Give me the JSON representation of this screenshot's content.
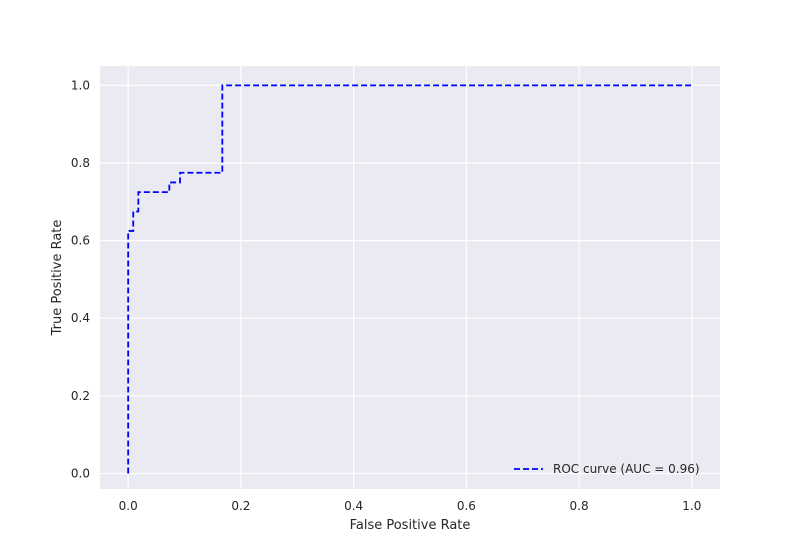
{
  "chart_data": {
    "type": "line",
    "title": "",
    "xlabel": "False Positive Rate",
    "ylabel": "True Positive Rate",
    "xlim": [
      -0.05,
      1.05
    ],
    "ylim": [
      -0.04,
      1.05
    ],
    "xticks": [
      0.0,
      0.2,
      0.4,
      0.6,
      0.8,
      1.0
    ],
    "xtick_labels": [
      "0.0",
      "0.2",
      "0.4",
      "0.6",
      "0.8",
      "1.0"
    ],
    "yticks": [
      0.0,
      0.2,
      0.4,
      0.6,
      0.8,
      1.0
    ],
    "ytick_labels": [
      "0.0",
      "0.2",
      "0.4",
      "0.6",
      "0.8",
      "1.0"
    ],
    "grid": true,
    "legend_position": "bottom-right",
    "series": [
      {
        "name": "ROC curve (AUC = 0.96)",
        "color": "#0000ff",
        "line_style": "dashed",
        "x": [
          0.0,
          0.0,
          0.009,
          0.009,
          0.018,
          0.018,
          0.073,
          0.073,
          0.082,
          0.082,
          0.092,
          0.092,
          0.167,
          0.167,
          1.0
        ],
        "y": [
          0.0,
          0.625,
          0.625,
          0.675,
          0.675,
          0.725,
          0.725,
          0.75,
          0.75,
          0.75,
          0.75,
          0.775,
          0.775,
          1.0,
          1.0
        ]
      }
    ]
  },
  "colors": {
    "plot_background": "#eaeaf2",
    "grid": "#ffffff",
    "line": "#0000ff"
  }
}
